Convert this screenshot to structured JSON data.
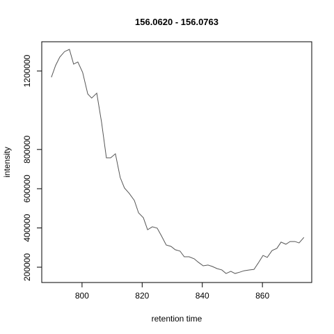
{
  "chart_data": {
    "type": "line",
    "title": "156.0620 - 156.0763",
    "x_label": "retention time",
    "y_label": "intensity",
    "x": [
      789.8,
      791.2,
      792.6,
      794.2,
      795.8,
      797.2,
      798.6,
      800.2,
      801.9,
      803.2,
      804.9,
      806.5,
      808.1,
      809.5,
      811.1,
      812.7,
      814.1,
      815.7,
      817.4,
      818.8,
      820.4,
      821.8,
      823.4,
      825.0,
      826.4,
      828.0,
      829.6,
      831.0,
      832.6,
      834.0,
      835.6,
      837.3,
      838.7,
      840.3,
      841.9,
      843.3,
      844.9,
      846.5,
      847.9,
      849.5,
      850.9,
      852.5,
      853.9,
      855.6,
      857.2,
      858.6,
      860.2,
      861.6,
      863.2,
      864.8,
      866.2,
      867.8,
      869.2,
      870.8,
      872.2,
      873.8
    ],
    "series": [
      {
        "color": "#555555",
        "values": [
          1168000,
          1228000,
          1271000,
          1299000,
          1310000,
          1235000,
          1246000,
          1193000,
          1083000,
          1062000,
          1087000,
          938000,
          757000,
          757000,
          778000,
          657000,
          604000,
          576000,
          540000,
          477000,
          452000,
          391000,
          406000,
          399000,
          360000,
          313000,
          306000,
          289000,
          282000,
          253000,
          253000,
          243000,
          225000,
          207000,
          211000,
          204000,
          193000,
          186000,
          168000,
          179000,
          168000,
          175000,
          182000,
          186000,
          189000,
          221000,
          260000,
          250000,
          285000,
          296000,
          328000,
          317000,
          331000,
          331000,
          324000,
          352000
        ]
      }
    ],
    "xlim": [
      786.6,
      876.4
    ],
    "ylim": [
      122000,
      1349000
    ],
    "xticks": [
      800,
      820,
      840,
      860
    ],
    "yticks": [
      200000,
      400000,
      600000,
      800000,
      1200000
    ]
  }
}
